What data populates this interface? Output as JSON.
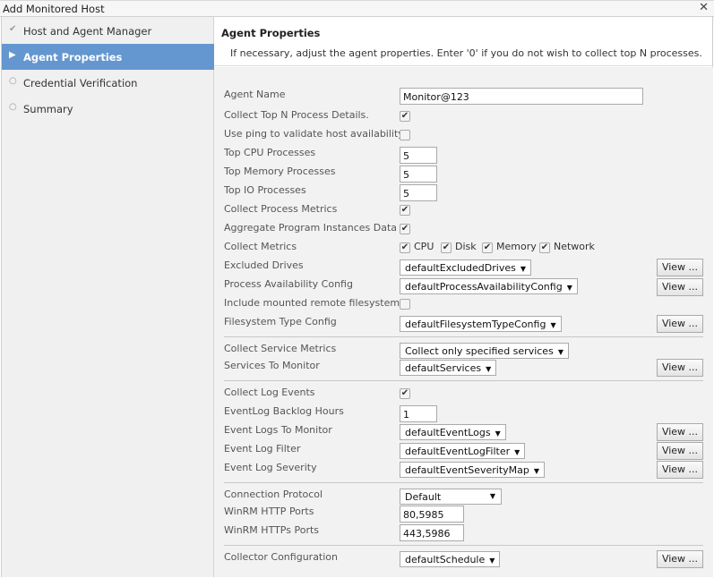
{
  "window": {
    "title": "Add Monitored Host",
    "close": "✕"
  },
  "sidebar": {
    "items": [
      {
        "label": "Host and Agent Manager",
        "icon": "check-icon",
        "glyph": "✔"
      },
      {
        "label": "Agent Properties",
        "icon": "arrow-right-icon",
        "glyph": "▶"
      },
      {
        "label": "Credential Verification",
        "icon": "circle-icon",
        "glyph": "○"
      },
      {
        "label": "Summary",
        "icon": "circle-icon",
        "glyph": "○"
      }
    ]
  },
  "header": {
    "title": "Agent Properties",
    "description": "If necessary, adjust the agent properties. Enter '0' if you do not wish to collect top N processes."
  },
  "form": {
    "agent_name": {
      "label": "Agent Name",
      "value": "Monitor@123"
    },
    "collect_top_n": {
      "label": "Collect Top N Process Details.",
      "checked": true
    },
    "use_ping": {
      "label": "Use ping to validate host availability",
      "checked": false
    },
    "top_cpu": {
      "label": "Top CPU Processes",
      "value": "5"
    },
    "top_memory": {
      "label": "Top Memory Processes",
      "value": "5"
    },
    "top_io": {
      "label": "Top IO Processes",
      "value": "5"
    },
    "collect_process_metrics": {
      "label": "Collect Process Metrics",
      "checked": true
    },
    "aggregate": {
      "label": "Aggregate Program Instances Data",
      "checked": true
    },
    "collect_metrics": {
      "label": "Collect Metrics",
      "options": [
        {
          "label": "CPU",
          "checked": true
        },
        {
          "label": "Disk",
          "checked": true
        },
        {
          "label": "Memory",
          "checked": true
        },
        {
          "label": "Network",
          "checked": true
        }
      ]
    },
    "excluded_drives": {
      "label": "Excluded Drives",
      "value": "defaultExcludedDrives"
    },
    "process_availability": {
      "label": "Process Availability Config",
      "value": "defaultProcessAvailabilityConfig"
    },
    "include_mounted": {
      "label": "Include mounted remote filesystems",
      "checked": false
    },
    "filesystem_type": {
      "label": "Filesystem Type Config",
      "value": "defaultFilesystemTypeConfig"
    },
    "collect_service_metrics": {
      "label": "Collect Service Metrics",
      "value": "Collect only specified services"
    },
    "services_to_monitor": {
      "label": "Services To Monitor",
      "value": "defaultServices"
    },
    "collect_log_events": {
      "label": "Collect Log Events",
      "checked": true
    },
    "eventlog_backlog": {
      "label": "EventLog Backlog Hours",
      "value": "1"
    },
    "event_logs": {
      "label": "Event Logs To Monitor",
      "value": "defaultEventLogs"
    },
    "event_log_filter": {
      "label": "Event Log Filter",
      "value": "defaultEventLogFilter"
    },
    "event_log_severity": {
      "label": "Event Log Severity",
      "value": "defaultEventSeverityMap"
    },
    "connection_protocol": {
      "label": "Connection Protocol",
      "value": "Default"
    },
    "winrm_http": {
      "label": "WinRM HTTP Ports",
      "value": "80,5985"
    },
    "winrm_https": {
      "label": "WinRM HTTPs Ports",
      "value": "443,5986"
    },
    "collector_config": {
      "label": "Collector Configuration",
      "value": "defaultSchedule"
    },
    "view_label": "View ...",
    "check_glyph": "✔",
    "dropdown_glyph": "▼"
  }
}
